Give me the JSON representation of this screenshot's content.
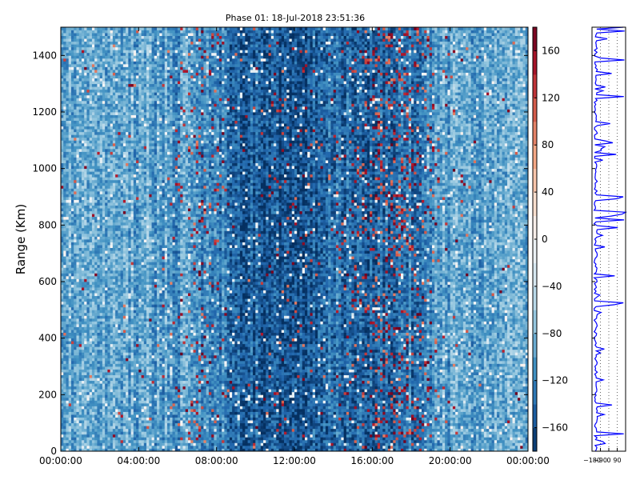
{
  "chart_data": [
    {
      "type": "heatmap",
      "title": "Phase 01: 18-Jul-2018 23:51:36",
      "xlabel": "",
      "ylabel": "Range (Km)",
      "xlim": [
        "00:00:00",
        "24:00:00"
      ],
      "ylim": [
        0,
        1500
      ],
      "x_ticks": [
        "00:00:00",
        "04:00:00",
        "08:00:00",
        "12:00:00",
        "16:00:00",
        "20:00:00",
        "00:00:00"
      ],
      "y_ticks": [
        0,
        200,
        400,
        600,
        800,
        1000,
        1200,
        1400
      ],
      "grid": false,
      "colormap": "RdBu_r",
      "colorbar": {
        "vmin": -180,
        "vmax": 180,
        "ticks": [
          -160,
          -120,
          -80,
          -40,
          0,
          40,
          80,
          120,
          160
        ]
      },
      "description_values": "phase in degrees; mostly negative (-100 to -180) across time and range, with scattered positive (red) speckles concentrated around 06:00-08:00 and 15:00-19:00"
    },
    {
      "type": "line",
      "xlabel": "",
      "ylabel": "",
      "xlim": [
        -180,
        180
      ],
      "ylim": [
        0,
        1500
      ],
      "x_ticks": [
        -180,
        -90,
        0,
        90
      ],
      "grid": true,
      "series_color": "#0000ff"
    }
  ],
  "colors": {
    "line": "#0000ff",
    "axes": "#000000",
    "background": "#ffffff"
  }
}
